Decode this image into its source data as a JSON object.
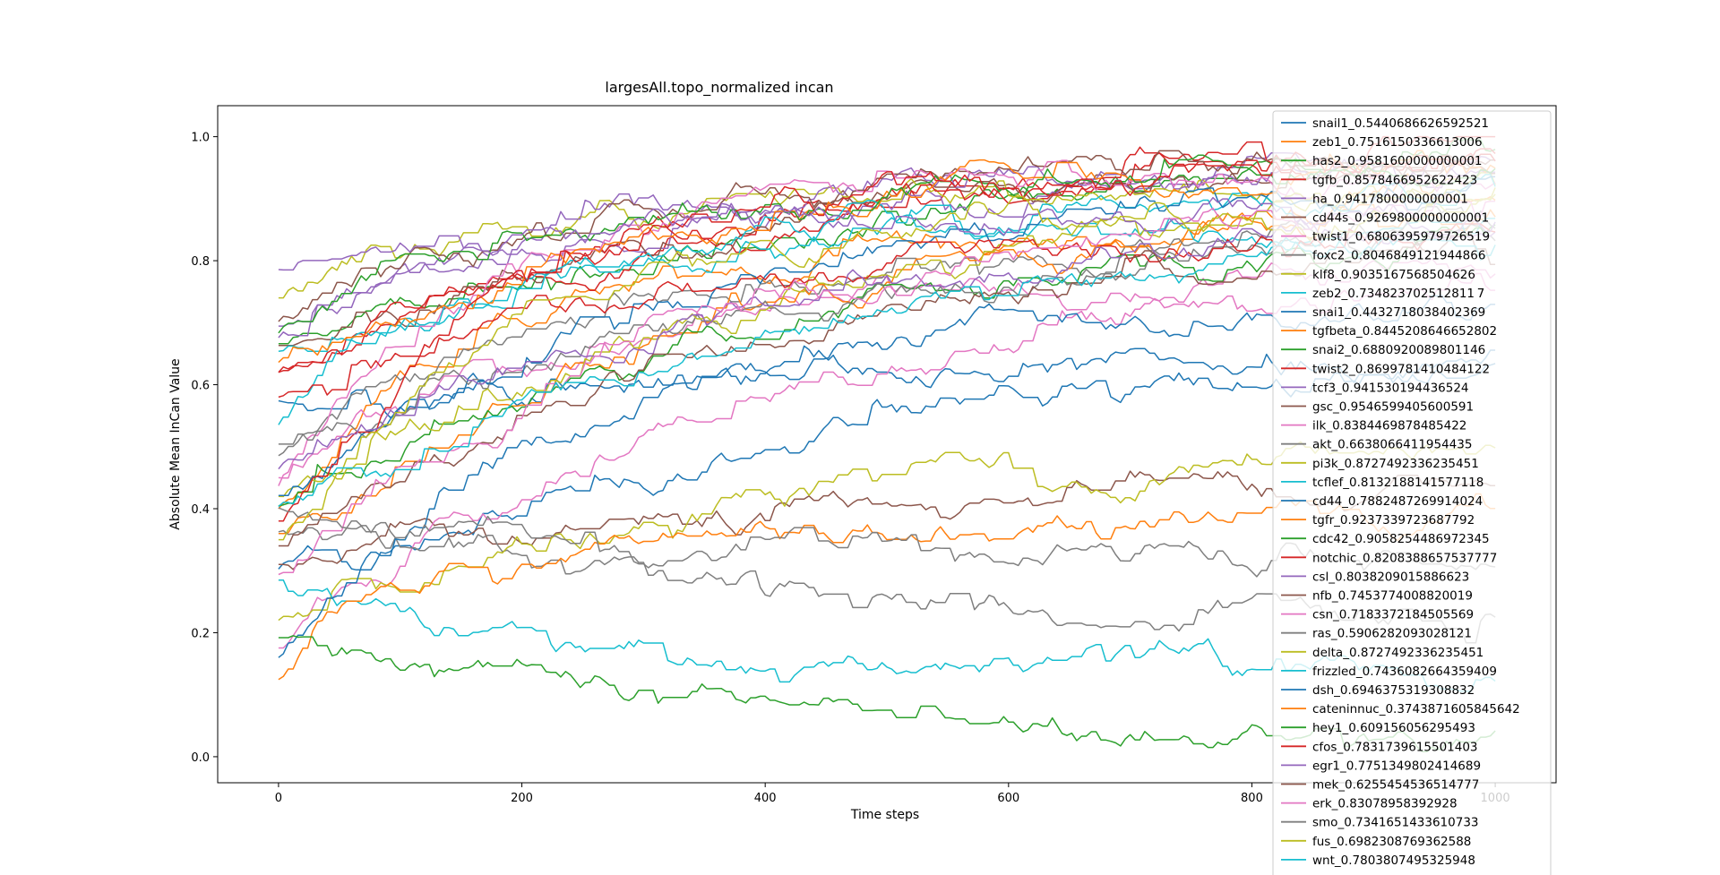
{
  "chart_data": {
    "type": "line",
    "title": "largesAll.topo_normalized incan",
    "xlabel": "Time steps",
    "ylabel": "Absolute Mean InCan Value",
    "xlim": [
      -50,
      1050
    ],
    "ylim": [
      -0.042,
      1.05
    ],
    "xticks": [
      0,
      200,
      400,
      600,
      800,
      1000
    ],
    "yticks": [
      0.0,
      0.2,
      0.4,
      0.6,
      0.8,
      1.0
    ],
    "xtick_labels": [
      "0",
      "200",
      "400",
      "600",
      "800",
      "1000"
    ],
    "ytick_labels": [
      "0.0",
      "0.2",
      "0.4",
      "0.6",
      "0.8",
      "1.0"
    ],
    "grid": false,
    "legend_position": "right",
    "series_count_shown": 40,
    "series": [
      {
        "name": "snail1_0.5440686626592521",
        "color": "#1f77b4",
        "start": 0.57,
        "end": 0.63
      },
      {
        "name": "zeb1_0.7516150336613006",
        "color": "#ff7f0e",
        "start": 0.4,
        "end": 0.86
      },
      {
        "name": "has2_0.9581600000000001",
        "color": "#2ca02c",
        "start": 0.66,
        "end": 0.97
      },
      {
        "name": "tgfb_0.8578466952622423",
        "color": "#d62728",
        "start": 0.62,
        "end": 0.99
      },
      {
        "name": "ha_0.9417800000000001",
        "color": "#9467bd",
        "start": 0.68,
        "end": 0.96
      },
      {
        "name": "cd44s_0.9269800000000001",
        "color": "#8c564b",
        "start": 0.66,
        "end": 0.95
      },
      {
        "name": "twist1_0.6806395979726519",
        "color": "#e377c2",
        "start": 0.45,
        "end": 0.8
      },
      {
        "name": "foxc2_0.8046849121944866",
        "color": "#7f7f7f",
        "start": 0.48,
        "end": 0.84
      },
      {
        "name": "klf8_0.9035167568504626",
        "color": "#bcbd22",
        "start": 0.74,
        "end": 0.92
      },
      {
        "name": "zeb2_0.734823702512811 7",
        "color": "#17becf",
        "start": 0.54,
        "end": 0.84
      },
      {
        "name": "snai1_0.4432718038402369",
        "color": "#1f77b4",
        "start": 0.3,
        "end": 0.64
      },
      {
        "name": "tgfbeta_0.8445208646652802",
        "color": "#ff7f0e",
        "start": 0.36,
        "end": 0.92
      },
      {
        "name": "snai2_0.6880920089801146",
        "color": "#2ca02c",
        "start": 0.4,
        "end": 0.84
      },
      {
        "name": "twist2_0.8699781410484122",
        "color": "#d62728",
        "start": 0.62,
        "end": 0.97
      },
      {
        "name": "tcf3_0.941530194436524",
        "color": "#9467bd",
        "start": 0.7,
        "end": 0.95
      },
      {
        "name": "gsc_0.9546599405600591",
        "color": "#8c564b",
        "start": 0.7,
        "end": 0.96
      },
      {
        "name": "ilk_0.8384469878485422",
        "color": "#e377c2",
        "start": 0.44,
        "end": 0.92
      },
      {
        "name": "akt_0.6638066411954435",
        "color": "#7f7f7f",
        "start": 0.5,
        "end": 0.86
      },
      {
        "name": "pi3k_0.8727492336235451",
        "color": "#bcbd22",
        "start": 0.42,
        "end": 0.9
      },
      {
        "name": "tcflef_0.8132188141577118",
        "color": "#17becf",
        "start": 0.66,
        "end": 0.92
      },
      {
        "name": "cd44_0.7882487269914024",
        "color": "#1f77b4",
        "start": 0.42,
        "end": 0.93
      },
      {
        "name": "tgfr_0.9237339723687792",
        "color": "#ff7f0e",
        "start": 0.64,
        "end": 0.96
      },
      {
        "name": "cdc42_0.9058254486972345",
        "color": "#2ca02c",
        "start": 0.68,
        "end": 0.94
      },
      {
        "name": "notchic_0.8208388657537777",
        "color": "#d62728",
        "start": 0.38,
        "end": 0.95
      },
      {
        "name": "csl_0.8038209015886623",
        "color": "#9467bd",
        "start": 0.78,
        "end": 0.87
      },
      {
        "name": "nfb_0.7453774008820019",
        "color": "#8c564b",
        "start": 0.31,
        "end": 0.44
      },
      {
        "name": "csn_0.7183372184505569",
        "color": "#e377c2",
        "start": 0.18,
        "end": 0.78
      },
      {
        "name": "ras_0.5906282093028121",
        "color": "#7f7f7f",
        "start": 0.36,
        "end": 0.22
      },
      {
        "name": "delta_0.8727492336235451",
        "color": "#bcbd22",
        "start": 0.22,
        "end": 0.49
      },
      {
        "name": "frizzled_0.7436082664359409",
        "color": "#17becf",
        "start": 0.28,
        "end": 0.12
      },
      {
        "name": "dsh_0.6946375319308832",
        "color": "#1f77b4",
        "start": 0.16,
        "end": 0.72
      },
      {
        "name": "cateninnuc_0.3743871605845642",
        "color": "#ff7f0e",
        "start": 0.13,
        "end": 0.38
      },
      {
        "name": "hey1_0.609156056295493",
        "color": "#2ca02c",
        "start": 0.19,
        "end": 0.02
      },
      {
        "name": "cfos_0.7831739615501403",
        "color": "#d62728",
        "start": 0.58,
        "end": 0.86
      },
      {
        "name": "egr1_0.7751349802414689",
        "color": "#9467bd",
        "start": 0.46,
        "end": 0.85
      },
      {
        "name": "mek_0.6255454536514777",
        "color": "#8c564b",
        "start": 0.34,
        "end": 0.82
      },
      {
        "name": "erk_0.83078958392928",
        "color": "#e377c2",
        "start": 0.3,
        "end": 0.88
      },
      {
        "name": "smo_0.7341651433610733",
        "color": "#7f7f7f",
        "start": 0.4,
        "end": 0.32
      },
      {
        "name": "fus_0.6982308769362588",
        "color": "#bcbd22",
        "start": 0.35,
        "end": 0.88
      },
      {
        "name": "wnt_0.7803807495325948",
        "color": "#17becf",
        "start": 0.4,
        "end": 0.86
      }
    ]
  }
}
